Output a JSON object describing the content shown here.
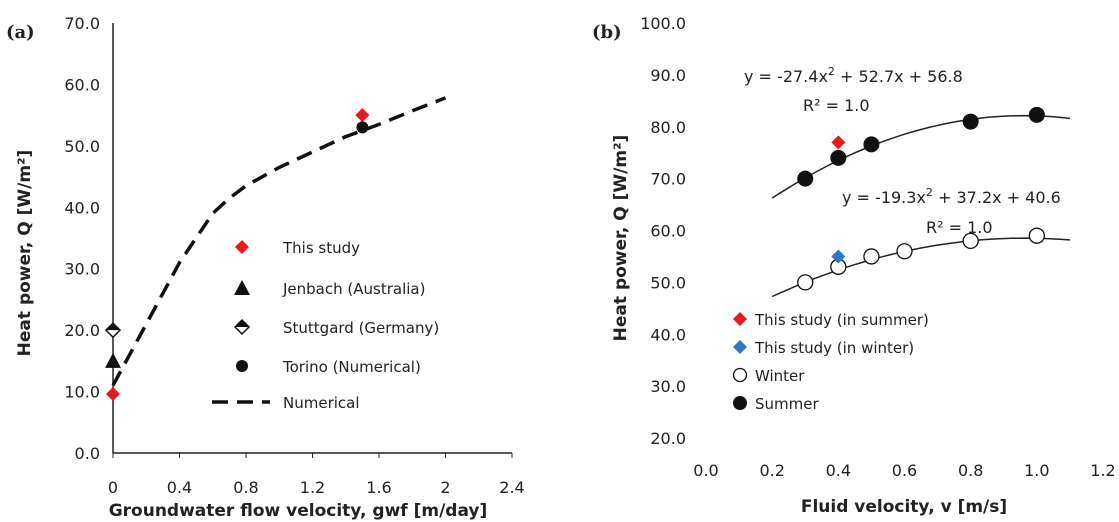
{
  "chart_data": [
    {
      "type": "scatter",
      "panel_label": "(a)",
      "title": "",
      "xlabel": "Groundwater flow velocity, gwf [m/day]",
      "ylabel": "Heat power, Q [W/m²]",
      "xlim": [
        0,
        2.4
      ],
      "ylim": [
        0,
        70
      ],
      "xticks": [
        "0",
        "0.4",
        "0.8",
        "1.2",
        "1.6",
        "2",
        "2.4"
      ],
      "yticks": [
        "0.0",
        "10.0",
        "20.0",
        "30.0",
        "40.0",
        "50.0",
        "60.0",
        "70.0"
      ],
      "grid": false,
      "legend_position": "right",
      "series": [
        {
          "name": "This study",
          "marker": "diamond",
          "color": "#e8191a",
          "points": [
            [
              0,
              9.6
            ],
            [
              1.5,
              55
            ]
          ]
        },
        {
          "name": "Jenbach (Australia)",
          "marker": "triangle",
          "color": "#111111",
          "points": [
            [
              0,
              15
            ]
          ]
        },
        {
          "name": "Stuttgard (Germany)",
          "marker": "half-diamond",
          "color": "#111111",
          "points": [
            [
              0,
              20
            ]
          ]
        },
        {
          "name": "Torino (Numerical)",
          "marker": "circle",
          "color": "#111111",
          "points": [
            [
              1.5,
              53
            ]
          ]
        },
        {
          "name": "Numerical",
          "marker": "dashed-line",
          "color": "#111111",
          "points": [
            [
              0,
              11
            ],
            [
              0.1,
              16
            ],
            [
              0.2,
              21
            ],
            [
              0.3,
              26
            ],
            [
              0.4,
              31
            ],
            [
              0.5,
              35
            ],
            [
              0.6,
              39
            ],
            [
              0.7,
              41.5
            ],
            [
              0.8,
              43.5
            ],
            [
              1.0,
              46.5
            ],
            [
              1.2,
              49
            ],
            [
              1.4,
              51.5
            ],
            [
              1.6,
              53.5
            ],
            [
              1.8,
              55.7
            ],
            [
              2.0,
              57.8
            ]
          ]
        }
      ]
    },
    {
      "type": "scatter",
      "panel_label": "(b)",
      "title": "",
      "xlabel": "Fluid velocity, v [m/s]",
      "ylabel": "Heat power, Q [W/m²]",
      "xlim": [
        0,
        1.2
      ],
      "ylim": [
        20,
        100
      ],
      "xticks": [
        "0.0",
        "0.2",
        "0.4",
        "0.6",
        "0.8",
        "1.0",
        "1.2"
      ],
      "yticks": [
        "20.0",
        "30.0",
        "40.0",
        "50.0",
        "60.0",
        "70.0",
        "80.0",
        "90.0",
        "100.0"
      ],
      "grid": false,
      "legend_position": "bottom-left",
      "series": [
        {
          "name": "This study (in summer)",
          "marker": "diamond",
          "color": "#e8191a",
          "points": [
            [
              0.4,
              77
            ]
          ]
        },
        {
          "name": "This study (in winter)",
          "marker": "diamond",
          "color": "#2f77c4",
          "points": [
            [
              0.4,
              55
            ]
          ]
        },
        {
          "name": "Winter",
          "marker": "open-circle",
          "color": "#111111",
          "points": [
            [
              0.3,
              50
            ],
            [
              0.4,
              53
            ],
            [
              0.5,
              55
            ],
            [
              0.6,
              56
            ],
            [
              0.8,
              58
            ],
            [
              1.0,
              59
            ]
          ]
        },
        {
          "name": "Summer",
          "marker": "filled-circle",
          "color": "#111111",
          "points": [
            [
              0.3,
              70
            ],
            [
              0.4,
              74
            ],
            [
              0.5,
              76.6
            ],
            [
              0.8,
              81
            ],
            [
              1.0,
              82.3
            ]
          ]
        }
      ],
      "fits": [
        {
          "of": "Summer",
          "a": -27.4,
          "b": 52.7,
          "c": 56.8,
          "x_range": [
            0.2,
            1.1
          ],
          "equation_prefix": "y = -27.4x",
          "equation_suffix": " + 52.7x + 56.8",
          "r2_label": "R² = 1.0"
        },
        {
          "of": "Winter",
          "a": -19.3,
          "b": 37.2,
          "c": 40.6,
          "x_range": [
            0.2,
            1.1
          ],
          "equation_prefix": "y = -19.3x",
          "equation_suffix": " + 37.2x + 40.6",
          "r2_label": "R² = 1.0"
        }
      ]
    }
  ]
}
